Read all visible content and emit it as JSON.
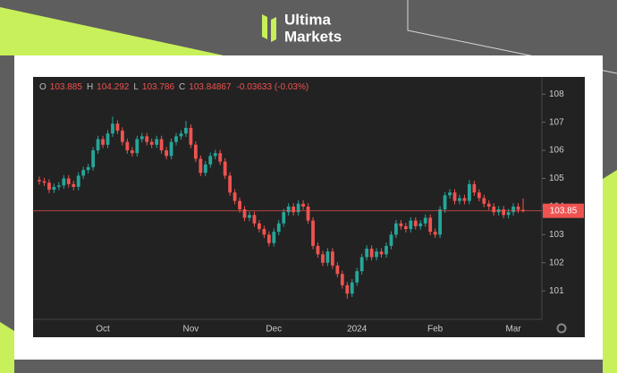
{
  "logo": {
    "line1": "Ultima",
    "line2": "Markets"
  },
  "chart_data": {
    "type": "candlestick",
    "header": {
      "o": "O",
      "h": "H",
      "l": "L",
      "c": "C",
      "change": "-0.03633 (-0.03%)"
    },
    "up_color": "#26a69a",
    "down_color": "#ef5350",
    "categories": [
      null,
      null,
      null,
      null,
      null,
      null,
      null,
      null,
      null,
      null,
      null,
      null,
      null,
      "Oct",
      null,
      null,
      null,
      null,
      null,
      null,
      null,
      null,
      null,
      null,
      null,
      null,
      null,
      null,
      null,
      null,
      null,
      "Nov",
      null,
      null,
      null,
      null,
      null,
      null,
      null,
      null,
      null,
      null,
      null,
      null,
      null,
      null,
      null,
      null,
      "Dec",
      null,
      null,
      null,
      null,
      null,
      null,
      null,
      null,
      null,
      null,
      null,
      null,
      null,
      null,
      null,
      null,
      "2024",
      null,
      null,
      null,
      null,
      null,
      null,
      null,
      null,
      null,
      null,
      null,
      null,
      null,
      null,
      null,
      "Feb",
      null,
      null,
      null,
      null,
      null,
      null,
      null,
      null,
      null,
      null,
      null,
      null,
      null,
      null,
      null,
      "Mar",
      null,
      null
    ],
    "open": [
      104.95,
      104.9,
      104.85,
      104.6,
      104.7,
      104.75,
      105.0,
      104.8,
      104.7,
      105.1,
      105.3,
      105.4,
      106.0,
      106.4,
      106.2,
      106.6,
      106.95,
      106.7,
      106.3,
      106.0,
      105.9,
      106.4,
      106.5,
      106.3,
      106.2,
      106.4,
      106.0,
      105.8,
      106.3,
      106.5,
      106.6,
      106.8,
      106.2,
      105.7,
      105.2,
      105.5,
      105.8,
      105.9,
      105.6,
      105.1,
      104.5,
      104.2,
      103.9,
      103.6,
      103.7,
      103.4,
      103.2,
      103.0,
      102.7,
      103.1,
      103.4,
      103.8,
      104.0,
      103.8,
      104.1,
      104.0,
      103.5,
      102.6,
      102.3,
      102.0,
      102.4,
      101.9,
      101.6,
      101.2,
      100.9,
      101.3,
      101.7,
      102.2,
      102.5,
      102.2,
      102.4,
      102.3,
      102.6,
      103.0,
      103.4,
      103.3,
      103.2,
      103.5,
      103.3,
      103.4,
      103.6,
      103.1,
      103.0,
      103.9,
      104.4,
      104.5,
      104.2,
      104.3,
      104.2,
      104.8,
      104.5,
      104.3,
      104.1,
      104.0,
      103.8,
      103.9,
      103.7,
      103.8,
      104.0,
      103.885
    ],
    "high": [
      105.07,
      105.02,
      104.97,
      104.82,
      104.87,
      105.12,
      105.12,
      104.92,
      105.22,
      105.42,
      105.52,
      106.12,
      106.52,
      106.52,
      106.72,
      107.2,
      107.07,
      106.82,
      106.42,
      106.12,
      106.52,
      106.62,
      106.62,
      106.42,
      106.52,
      106.52,
      106.12,
      106.42,
      106.62,
      106.72,
      107.05,
      106.92,
      106.32,
      105.82,
      105.62,
      105.92,
      106.02,
      106.02,
      105.72,
      105.22,
      104.62,
      104.32,
      104.02,
      103.82,
      103.82,
      103.52,
      103.32,
      103.12,
      103.22,
      103.52,
      103.92,
      104.12,
      104.12,
      104.22,
      104.22,
      104.12,
      103.62,
      102.72,
      102.42,
      102.52,
      102.52,
      102.02,
      101.72,
      101.32,
      101.42,
      101.82,
      102.32,
      102.62,
      102.62,
      102.52,
      102.52,
      102.72,
      103.12,
      103.52,
      103.52,
      103.42,
      103.62,
      103.62,
      103.52,
      103.72,
      103.72,
      103.22,
      104.02,
      104.52,
      104.62,
      104.62,
      104.42,
      104.42,
      104.95,
      104.92,
      104.62,
      104.42,
      104.22,
      104.12,
      104.02,
      104.02,
      103.92,
      104.12,
      104.12,
      104.292
    ],
    "low": [
      104.78,
      104.73,
      104.48,
      104.48,
      104.58,
      104.63,
      104.68,
      104.58,
      104.58,
      104.98,
      105.18,
      105.28,
      105.88,
      106.08,
      106.08,
      106.48,
      106.58,
      106.18,
      105.88,
      105.78,
      105.78,
      106.28,
      106.18,
      106.08,
      106.08,
      105.88,
      105.68,
      105.68,
      106.18,
      106.38,
      106.48,
      106.08,
      105.58,
      105.08,
      105.08,
      105.38,
      105.68,
      105.48,
      104.98,
      104.38,
      104.08,
      103.78,
      103.48,
      103.48,
      103.28,
      103.08,
      102.88,
      102.58,
      102.58,
      102.98,
      103.28,
      103.68,
      103.68,
      103.68,
      103.88,
      103.38,
      102.48,
      102.18,
      101.88,
      101.88,
      101.78,
      101.48,
      101.08,
      100.72,
      100.78,
      101.18,
      101.58,
      102.08,
      102.08,
      102.08,
      102.18,
      102.18,
      102.48,
      102.88,
      103.18,
      103.08,
      103.08,
      103.18,
      103.18,
      103.28,
      102.98,
      102.88,
      102.88,
      103.78,
      104.28,
      104.08,
      104.08,
      104.08,
      104.08,
      104.38,
      104.18,
      103.98,
      103.88,
      103.68,
      103.68,
      103.58,
      103.58,
      103.68,
      103.77,
      103.786
    ],
    "close": [
      104.9,
      104.85,
      104.6,
      104.7,
      104.75,
      105.0,
      104.8,
      104.7,
      105.1,
      105.3,
      105.4,
      106.0,
      106.4,
      106.2,
      106.6,
      106.95,
      106.7,
      106.3,
      106.0,
      105.9,
      106.4,
      106.5,
      106.3,
      106.2,
      106.4,
      106.0,
      105.8,
      106.3,
      106.5,
      106.6,
      106.8,
      106.2,
      105.7,
      105.2,
      105.5,
      105.8,
      105.9,
      105.6,
      105.1,
      104.5,
      104.2,
      103.9,
      103.6,
      103.7,
      103.4,
      103.2,
      103.0,
      102.7,
      103.1,
      103.4,
      103.8,
      104.0,
      103.8,
      104.1,
      104.0,
      103.5,
      102.6,
      102.3,
      102.0,
      102.4,
      101.9,
      101.6,
      101.2,
      100.9,
      101.3,
      101.7,
      102.2,
      102.5,
      102.2,
      102.4,
      102.3,
      102.6,
      103.0,
      103.4,
      103.3,
      103.2,
      103.5,
      103.3,
      103.4,
      103.6,
      103.1,
      103.0,
      103.9,
      104.4,
      104.5,
      104.2,
      104.3,
      104.2,
      104.8,
      104.5,
      104.3,
      104.1,
      104.0,
      103.8,
      103.9,
      103.7,
      103.8,
      104.0,
      103.885,
      103.84867
    ],
    "last_price": {
      "value": 103.84867,
      "label": "103.85"
    },
    "ylim": [
      100.05,
      108.55
    ],
    "yticks": [
      101,
      102,
      103,
      104,
      105,
      106,
      107,
      108
    ]
  }
}
